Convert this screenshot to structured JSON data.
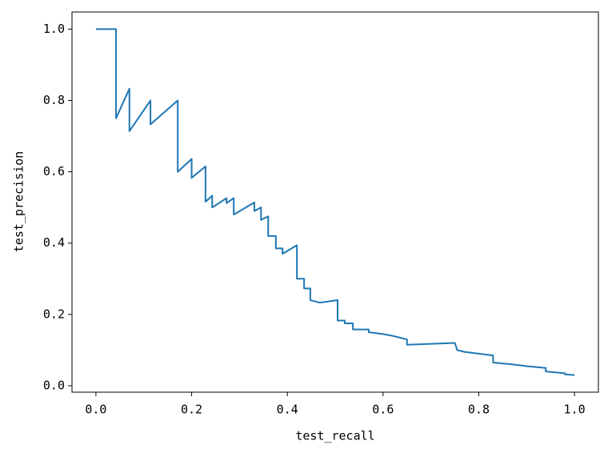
{
  "chart_data": {
    "type": "line",
    "x_label": "test_recall",
    "y_label": "test_precision",
    "color": "#1f77b4",
    "x": [
      0,
      0.042,
      0.042,
      0.07,
      0.07,
      0.114,
      0.114,
      0.171,
      0.171,
      0.2,
      0.2,
      0.229,
      0.229,
      0.243,
      0.243,
      0.273,
      0.273,
      0.288,
      0.288,
      0.331,
      0.331,
      0.345,
      0.345,
      0.36,
      0.36,
      0.376,
      0.376,
      0.39,
      0.39,
      0.42,
      0.42,
      0.435,
      0.435,
      0.448,
      0.448,
      0.468,
      0.505,
      0.505,
      0.52,
      0.52,
      0.537,
      0.537,
      0.57,
      0.57,
      0.6,
      0.62,
      0.65,
      0.65,
      0.75,
      0.755,
      0.77,
      0.8,
      0.83,
      0.83,
      0.87,
      0.9,
      0.94,
      0.94,
      0.98,
      0.98,
      1.0
    ],
    "values": [
      1.0,
      1.0,
      0.75,
      0.833,
      0.714,
      0.8,
      0.733,
      0.8,
      0.6,
      0.636,
      0.583,
      0.615,
      0.516,
      0.533,
      0.5,
      0.526,
      0.512,
      0.526,
      0.48,
      0.514,
      0.49,
      0.5,
      0.465,
      0.475,
      0.42,
      0.42,
      0.385,
      0.385,
      0.37,
      0.394,
      0.3,
      0.3,
      0.273,
      0.273,
      0.24,
      0.233,
      0.24,
      0.183,
      0.183,
      0.175,
      0.175,
      0.158,
      0.158,
      0.15,
      0.145,
      0.14,
      0.13,
      0.115,
      0.12,
      0.1,
      0.095,
      0.09,
      0.085,
      0.065,
      0.06,
      0.055,
      0.05,
      0.04,
      0.035,
      0.032,
      0.03
    ],
    "xlim": [
      -0.05,
      1.05
    ],
    "ylim": [
      -0.018,
      1.048
    ],
    "xticks": [
      {
        "value": 0,
        "label": "0.0"
      },
      0.2,
      0.4,
      0.6,
      0.8,
      {
        "value": 1,
        "label": "1.0"
      }
    ],
    "yticks": [
      {
        "value": 0,
        "label": "0.0"
      },
      0.2,
      0.4,
      0.6,
      0.8,
      {
        "value": 1,
        "label": "1.0"
      }
    ]
  }
}
